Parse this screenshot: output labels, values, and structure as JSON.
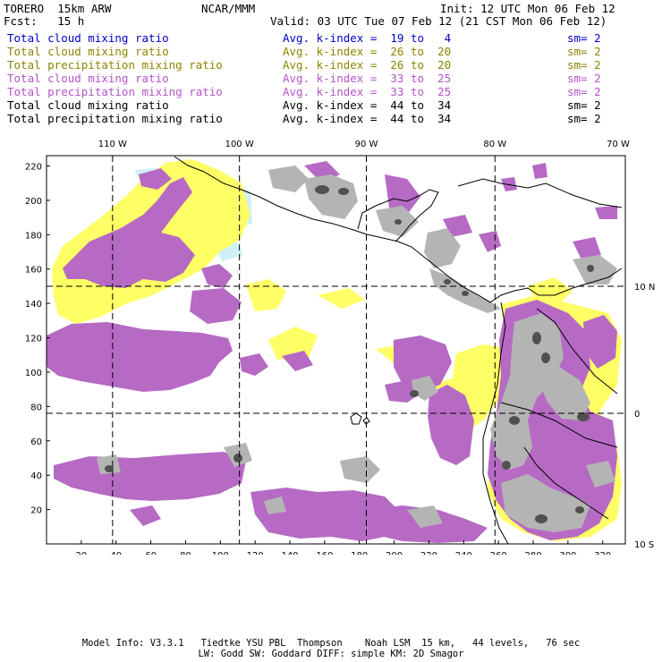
{
  "header": {
    "model": "TORERO  15km ARW",
    "center": "NCAR/MMM",
    "init": "Init: 12 UTC Mon 06 Feb 12",
    "fcst": "Fcst:   15 h",
    "valid": "Valid: 03 UTC Tue 07 Feb 12 (21 CST Mon 06 Feb 12)"
  },
  "legend": [
    {
      "field": "Total cloud mixing ratio",
      "kindex": "Avg. k-index =  19 to   4",
      "sm": "sm= 2",
      "color": "#0000cc"
    },
    {
      "field": "Total cloud mixing ratio",
      "kindex": "Avg. k-index =  26 to  20",
      "sm": "sm= 2",
      "color": "#8c8400"
    },
    {
      "field": "Total precipitation mixing ratio",
      "kindex": "Avg. k-index =  26 to  20",
      "sm": "sm= 2",
      "color": "#8c8400"
    },
    {
      "field": "Total cloud mixing ratio",
      "kindex": "Avg. k-index =  33 to  25",
      "sm": "sm= 2",
      "color": "#b454c8"
    },
    {
      "field": "Total precipitation mixing ratio",
      "kindex": "Avg. k-index =  33 to  25",
      "sm": "sm= 2",
      "color": "#b454c8"
    },
    {
      "field": "Total cloud mixing ratio",
      "kindex": "Avg. k-index =  44 to  34",
      "sm": "sm= 2",
      "color": "#000000"
    },
    {
      "field": "Total precipitation mixing ratio",
      "kindex": "Avg. k-index =  44 to  34",
      "sm": "sm= 2",
      "color": "#000000"
    }
  ],
  "map": {
    "lon_labels": [
      "110 W",
      "100 W",
      "90 W",
      "80 W",
      "70 W"
    ],
    "lat_labels": [
      "10 N",
      "0",
      "10 S"
    ],
    "x_ticks": [
      "20",
      "40",
      "60",
      "80",
      "100",
      "120",
      "140",
      "160",
      "180",
      "200",
      "220",
      "240",
      "260",
      "280",
      "300",
      "320"
    ],
    "y_ticks": [
      "20",
      "40",
      "60",
      "80",
      "100",
      "120",
      "140",
      "160",
      "180",
      "200",
      "220"
    ],
    "x_grid": [
      38,
      111,
      184,
      258
    ],
    "y_grid": [
      76,
      150
    ],
    "x_range": [
      0,
      333
    ],
    "y_range": [
      0,
      226
    ],
    "colors": {
      "light_cloud": "#cdf0fa",
      "yellow": "#ffff66",
      "purple": "#b66ac4",
      "gray_light": "#b4b4b4",
      "gray_dark": "#505050",
      "coast": "#000000"
    }
  },
  "footer": {
    "line1": "Model Info: V3.3.1   Tiedtke YSU PBL  Thompson    Noah LSM  15 km,   44 levels,   76 sec",
    "line2": "LW: Godd SW: Goddard DIFF: simple KM: 2D Smagor"
  }
}
